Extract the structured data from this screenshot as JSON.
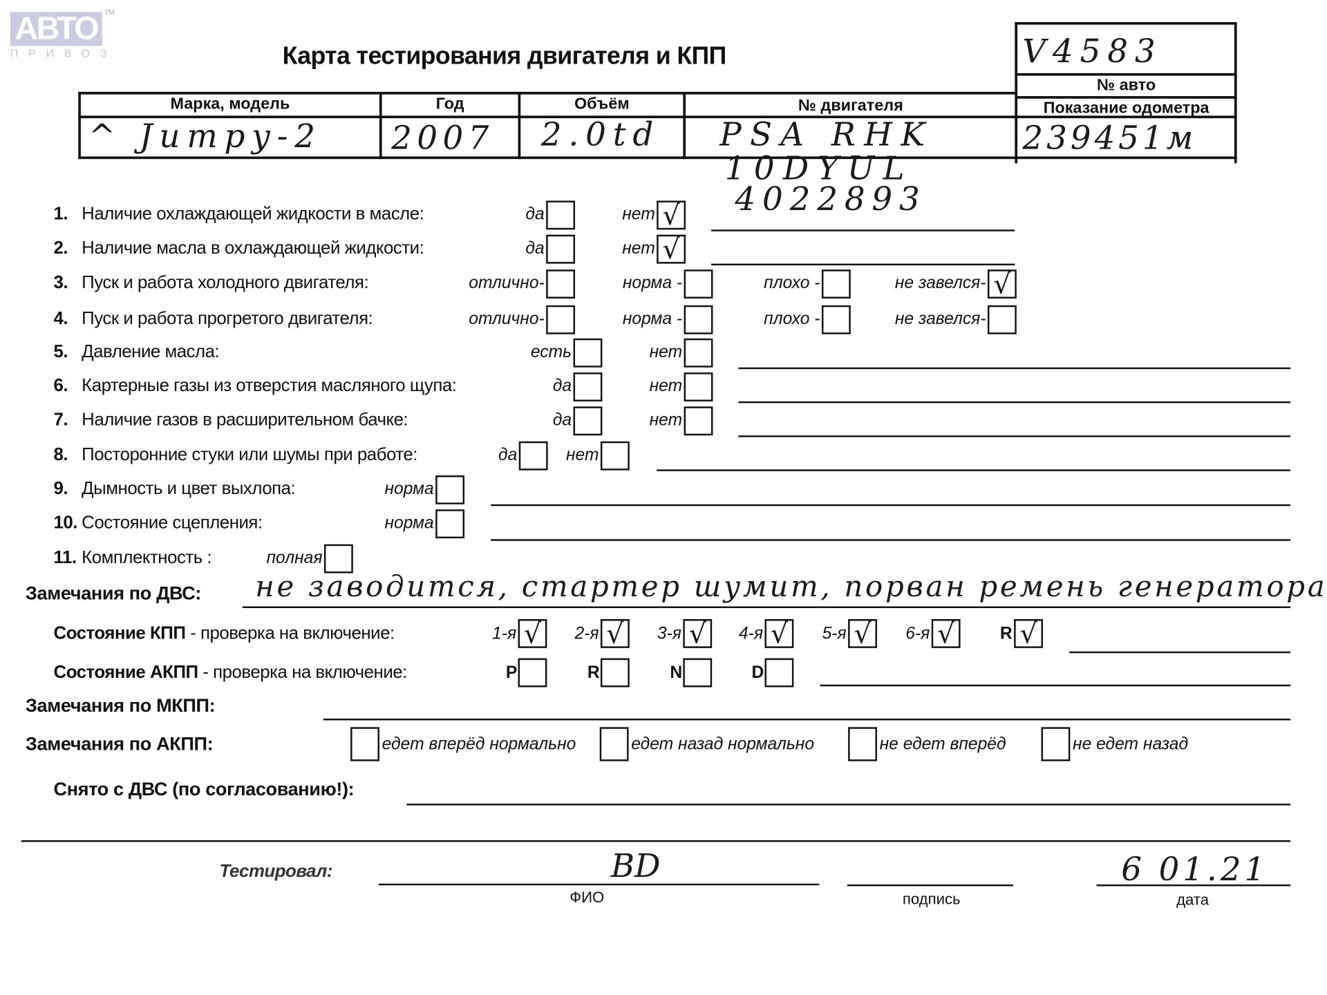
{
  "logo": {
    "text": "АВТО",
    "sub": "ПРИВОЗ",
    "tm": "TM"
  },
  "title": "Карта тестирования двигателя  и КПП",
  "car_number": {
    "value": "V4583",
    "label": "№ авто"
  },
  "header": {
    "columns": [
      "Марка, модель",
      "Год",
      "Объём",
      "№ двигателя",
      "Показание одометра"
    ],
    "values": [
      "^ Jumpy-2",
      "2007",
      "2.0td",
      "PSA RHK",
      "239451м"
    ],
    "engine_extra": [
      "10DYUL",
      "4022893"
    ]
  },
  "questions": [
    {
      "num": "1.",
      "label": "Наличие охлаждающей жидкости в масле:",
      "options": [
        {
          "label": "да",
          "checked": false
        },
        {
          "label": "нет",
          "checked": true
        }
      ]
    },
    {
      "num": "2.",
      "label": "Наличие масла в охлаждающей жидкости:",
      "options": [
        {
          "label": "да",
          "checked": false
        },
        {
          "label": "нет",
          "checked": true
        }
      ]
    },
    {
      "num": "3.",
      "label": "Пуск и работа холодного двигателя:",
      "options": [
        {
          "label": "отлично-",
          "checked": false
        },
        {
          "label": "норма -",
          "checked": false
        },
        {
          "label": "плохо -",
          "checked": false
        },
        {
          "label": "не завелся-",
          "checked": true
        }
      ]
    },
    {
      "num": "4.",
      "label": "Пуск и работа прогретого двигателя:",
      "options": [
        {
          "label": "отлично-",
          "checked": false
        },
        {
          "label": "норма -",
          "checked": false
        },
        {
          "label": "плохо -",
          "checked": false
        },
        {
          "label": "не завелся-",
          "checked": false
        }
      ]
    },
    {
      "num": "5.",
      "label": "Давление масла:",
      "options": [
        {
          "label": "есть",
          "checked": false
        },
        {
          "label": "нет",
          "checked": false
        }
      ]
    },
    {
      "num": "6.",
      "label": "Картерные газы из отверстия масляного щупа:",
      "options": [
        {
          "label": "да",
          "checked": false
        },
        {
          "label": "нет",
          "checked": false
        }
      ]
    },
    {
      "num": "7.",
      "label": "Наличие газов в расширительном бачке:",
      "options": [
        {
          "label": "да",
          "checked": false
        },
        {
          "label": "нет",
          "checked": false
        }
      ]
    },
    {
      "num": "8.",
      "label": "Посторонние стуки или шумы при работе:",
      "options": [
        {
          "label": "да",
          "checked": false
        },
        {
          "label": "нет",
          "checked": false
        }
      ]
    },
    {
      "num": "9.",
      "label": "Дымность и цвет выхлопа:",
      "options": [
        {
          "label": "норма",
          "checked": false
        }
      ]
    },
    {
      "num": "10.",
      "label": "Состояние сцепления:",
      "options": [
        {
          "label": "норма",
          "checked": false
        }
      ]
    },
    {
      "num": "11.",
      "label": "Комплектность :",
      "options": [
        {
          "label": "полная",
          "checked": false
        }
      ]
    }
  ],
  "ice_remarks": {
    "label": "Замечания по ДВС:",
    "value": "не заводится, стартер шумит, порван ремень генератора"
  },
  "manual_gearbox": {
    "label_bold": "Состояние КПП",
    "label_rest": " - проверка на включение:",
    "gears": [
      {
        "label": "1-я",
        "checked": true
      },
      {
        "label": "2-я",
        "checked": true
      },
      {
        "label": "3-я",
        "checked": true
      },
      {
        "label": "4-я",
        "checked": true
      },
      {
        "label": "5-я",
        "checked": true
      },
      {
        "label": "6-я",
        "checked": true
      },
      {
        "label": "R",
        "checked": true
      }
    ]
  },
  "auto_gearbox": {
    "label_bold": "Состояние АКПП",
    "label_rest": " - проверка на включение:",
    "gears": [
      {
        "label": "P",
        "checked": false
      },
      {
        "label": "R",
        "checked": false
      },
      {
        "label": "N",
        "checked": false
      },
      {
        "label": "D",
        "checked": false
      }
    ]
  },
  "manual_remarks": {
    "label": "Замечания по МКПП:"
  },
  "auto_remarks": {
    "label": "Замечания по АКПП:",
    "options": [
      {
        "label": "едет вперёд нормально",
        "checked": false
      },
      {
        "label": "едет назад нормально",
        "checked": false
      },
      {
        "label": "не едет вперёд",
        "checked": false
      },
      {
        "label": "не едет назад",
        "checked": false
      }
    ]
  },
  "removed": {
    "label": "Снято с ДВС (по согласованию!):"
  },
  "tested_by": {
    "label": "Тестировал:",
    "name": "BD",
    "name_caption": "ФИО",
    "signature_caption": "подпись",
    "date": "6 01.21",
    "date_caption": "дата"
  },
  "check_mark": "√"
}
